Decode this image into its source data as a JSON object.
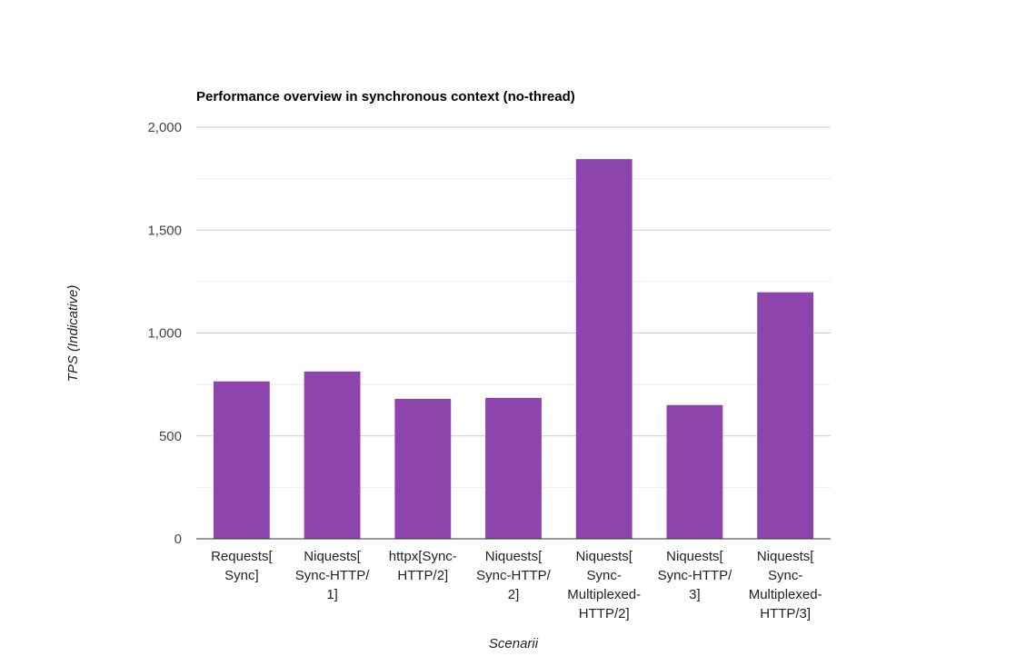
{
  "chart_data": {
    "type": "bar",
    "title": "Performance overview in synchronous context (no-thread)",
    "xlabel": "Scenarii",
    "ylabel": "TPS (Indicative)",
    "categories": [
      [
        "Requests[",
        "Sync]"
      ],
      [
        "Niquests[",
        "Sync-HTTP/",
        "1]"
      ],
      [
        "httpx[Sync-",
        "HTTP/2]"
      ],
      [
        "Niquests[",
        "Sync-HTTP/",
        "2]"
      ],
      [
        "Niquests[",
        "Sync-",
        "Multiplexed-",
        "HTTP/2]"
      ],
      [
        "Niquests[",
        "Sync-HTTP/",
        "3]"
      ],
      [
        "Niquests[",
        "Sync-",
        "Multiplexed-",
        "HTTP/3]"
      ]
    ],
    "values": [
      765,
      813,
      680,
      685,
      1845,
      650,
      1198
    ],
    "ylim": [
      0,
      2000
    ],
    "yticks": [
      0,
      500,
      1000,
      1500,
      2000
    ],
    "ytick_labels": [
      "0",
      "500",
      "1,000",
      "1,500",
      "2,000"
    ],
    "grid": true,
    "legend": "none",
    "colors": {
      "bar": "#8e44ad",
      "gridline": "#cccccc",
      "minor_gridline": "#ebebeb",
      "baseline": "#333333"
    }
  }
}
